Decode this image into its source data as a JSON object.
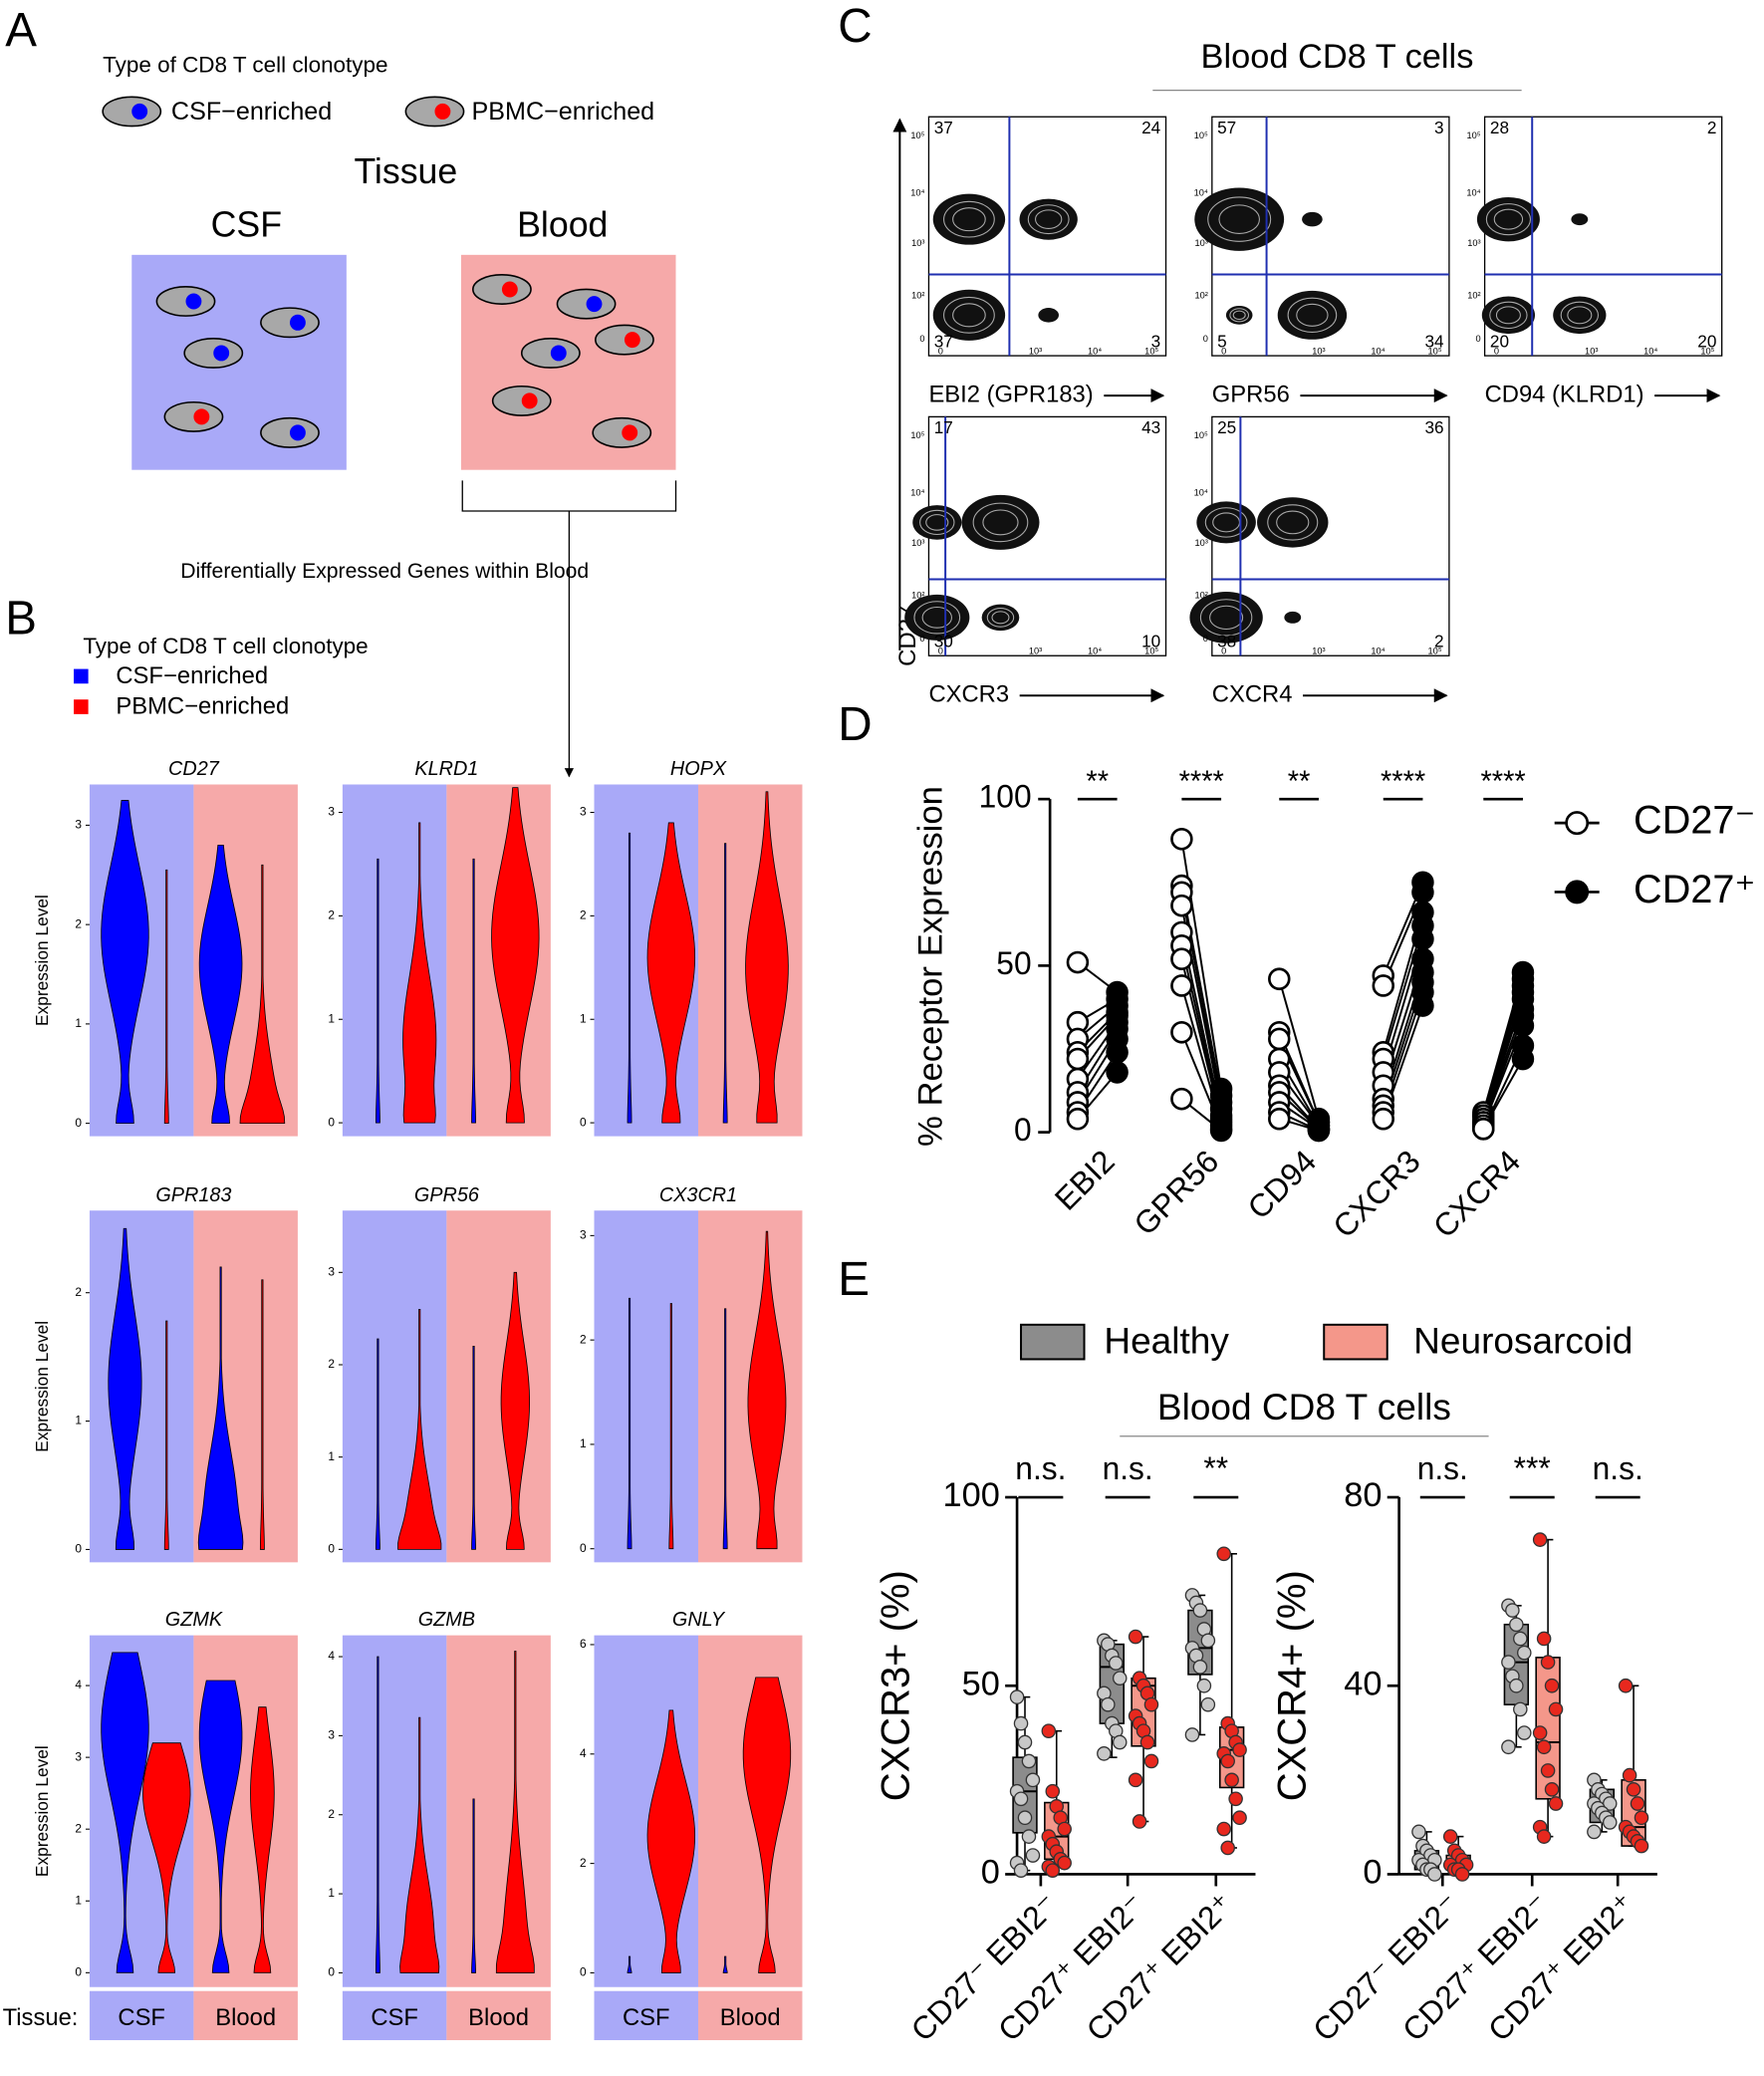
{
  "panel_labels": [
    "A",
    "B",
    "C",
    "D",
    "E"
  ],
  "panel_a": {
    "legend_title": "Type of CD8 T cell clonotype",
    "legend": [
      {
        "name": "CSF−enriched",
        "color": "#0000ff"
      },
      {
        "name": "PBMC−enriched",
        "color": "#ff0000"
      }
    ],
    "heading": "Tissue",
    "tissues": [
      {
        "name": "CSF",
        "color": "#a9a9f8"
      },
      {
        "name": "Blood",
        "color": "#f6a9a9"
      }
    ],
    "caption": "Differentially Expressed Genes within Blood"
  },
  "panel_b": {
    "legend_title": "Type of CD8 T cell clonotype",
    "legend": [
      {
        "name": "CSF−enriched",
        "color": "#0000ff"
      },
      {
        "name": "PBMC−enriched",
        "color": "#ff0000"
      }
    ],
    "y_label": "Expression Level",
    "tissue_label": "Tissue:",
    "tissues": [
      {
        "name": "CSF",
        "color": "#a9a9f8"
      },
      {
        "name": "Blood",
        "color": "#f6a9a9"
      }
    ],
    "plots": [
      {
        "gene": "CD27",
        "ylim": [
          -0.13,
          3.41
        ],
        "yticks": [
          0,
          1,
          2,
          3
        ],
        "violins": [
          {
            "max": 3.25,
            "mode": 1.9,
            "spread": 1
          },
          {
            "max": 2.55,
            "mode": 0,
            "spread": 0.05
          },
          {
            "max": 2.8,
            "mode": 1.6,
            "spread": 0.9
          },
          {
            "max": 2.6,
            "mode": 0.1,
            "spread": 0.6
          }
        ]
      },
      {
        "gene": "KLRD1",
        "ylim": [
          -0.13,
          3.27
        ],
        "yticks": [
          0,
          1,
          2,
          3
        ],
        "violins": [
          {
            "max": 2.55,
            "mode": 0,
            "spread": 0.05
          },
          {
            "max": 2.9,
            "mode": 0.8,
            "spread": 0.7
          },
          {
            "max": 2.55,
            "mode": 0,
            "spread": 0.05
          },
          {
            "max": 3.24,
            "mode": 1.8,
            "spread": 1
          }
        ]
      },
      {
        "gene": "HOPX",
        "ylim": [
          -0.13,
          3.27
        ],
        "yticks": [
          0,
          1,
          2,
          3
        ],
        "violins": [
          {
            "max": 2.8,
            "mode": 0,
            "spread": 0.05
          },
          {
            "max": 2.9,
            "mode": 1.6,
            "spread": 1
          },
          {
            "max": 2.7,
            "mode": 0,
            "spread": 0.05
          },
          {
            "max": 3.2,
            "mode": 1.5,
            "spread": 0.9
          }
        ]
      },
      {
        "gene": "GPR183",
        "ylim": [
          -0.1,
          2.64
        ],
        "yticks": [
          0,
          1,
          2
        ],
        "violins": [
          {
            "max": 2.5,
            "mode": 1.3,
            "spread": 0.7
          },
          {
            "max": 1.78,
            "mode": 0,
            "spread": 0.05
          },
          {
            "max": 2.2,
            "mode": 0.3,
            "spread": 0.7
          },
          {
            "max": 2.1,
            "mode": 0,
            "spread": 0.05
          }
        ]
      },
      {
        "gene": "GPR56",
        "ylim": [
          -0.14,
          3.67
        ],
        "yticks": [
          0,
          1,
          2,
          3
        ],
        "violins": [
          {
            "max": 2.28,
            "mode": 0,
            "spread": 0.05
          },
          {
            "max": 2.6,
            "mode": 0.2,
            "spread": 0.6
          },
          {
            "max": 2.2,
            "mode": 0,
            "spread": 0.05
          },
          {
            "max": 3.0,
            "mode": 1.6,
            "spread": 0.6
          }
        ]
      },
      {
        "gene": "CX3CR1",
        "ylim": [
          -0.13,
          3.24
        ],
        "yticks": [
          0,
          1,
          2,
          3
        ],
        "violins": [
          {
            "max": 2.4,
            "mode": 0,
            "spread": 0.05
          },
          {
            "max": 2.35,
            "mode": 0,
            "spread": 0.05
          },
          {
            "max": 2.3,
            "mode": 0,
            "spread": 0.05
          },
          {
            "max": 3.04,
            "mode": 1.4,
            "spread": 0.8
          }
        ]
      },
      {
        "gene": "GZMK",
        "ylim": [
          -0.2,
          4.7
        ],
        "yticks": [
          0,
          1,
          2,
          3,
          4
        ],
        "violins": [
          {
            "max": 4.46,
            "mode": 3.4,
            "spread": 1
          },
          {
            "max": 3.2,
            "mode": 2.5,
            "spread": 1
          },
          {
            "max": 4.07,
            "mode": 3.3,
            "spread": 0.9
          },
          {
            "max": 3.7,
            "mode": 2.5,
            "spread": 0.5
          }
        ]
      },
      {
        "gene": "GZMB",
        "ylim": [
          -0.18,
          4.27
        ],
        "yticks": [
          0,
          1,
          2,
          3,
          4
        ],
        "violins": [
          {
            "max": 4.0,
            "mode": 0,
            "spread": 0.05
          },
          {
            "max": 3.23,
            "mode": 0.5,
            "spread": 0.6
          },
          {
            "max": 2.2,
            "mode": 0,
            "spread": 0.05
          },
          {
            "max": 4.07,
            "mode": 0.4,
            "spread": 0.5
          }
        ]
      },
      {
        "gene": "GNLY",
        "ylim": [
          -0.26,
          6.17
        ],
        "yticks": [
          0,
          2,
          4,
          6
        ],
        "violins": [
          {
            "max": 0.3,
            "mode": 0,
            "spread": 0.05
          },
          {
            "max": 4.8,
            "mode": 2.5,
            "spread": 1
          },
          {
            "max": 0.3,
            "mode": 0,
            "spread": 0.05
          },
          {
            "max": 5.4,
            "mode": 4,
            "spread": 1
          }
        ]
      }
    ]
  },
  "panel_c": {
    "title": "Blood CD8 T cells",
    "y_label": "CD27",
    "xticks": [
      "0",
      "10³",
      "10⁴",
      "10⁵"
    ],
    "yticks": [
      "0",
      "10²",
      "10³",
      "10⁴",
      "10⁵"
    ],
    "plots": [
      {
        "x_label": "EBI2 (GPR183)",
        "quadrants": [
          37,
          24,
          37,
          3
        ]
      },
      {
        "x_label": "GPR56",
        "quadrants": [
          57,
          3,
          5,
          34
        ]
      },
      {
        "x_label": "CD94 (KLRD1)",
        "quadrants": [
          28,
          2,
          20,
          20
        ]
      },
      {
        "x_label": "CXCR3",
        "quadrants": [
          17,
          43,
          30,
          10
        ]
      },
      {
        "x_label": "CXCR4",
        "quadrants": [
          25,
          36,
          38,
          2
        ]
      }
    ]
  },
  "chart_data": [
    {
      "type": "paired-dot",
      "y_label": "% Receptor Expression",
      "categories": [
        "EBI2",
        "GPR56",
        "CD94",
        "CXCR3",
        "CXCR4"
      ],
      "significance": [
        "**",
        "****",
        "**",
        "****",
        "****"
      ],
      "ylim": [
        0,
        100
      ],
      "yticks": [
        0,
        50,
        100
      ],
      "legend": "right",
      "series": [
        {
          "name": "CD27⁻",
          "color": "#ffffff",
          "values": [
            [
              51,
              33,
              28,
              24,
              22,
              16,
              12,
              9,
              6,
              4
            ],
            [
              88,
              74,
              72,
              68,
              60,
              56,
              52,
              44,
              30,
              10
            ],
            [
              46,
              30,
              28,
              22,
              18,
              14,
              12,
              9,
              6,
              4
            ],
            [
              47,
              44,
              24,
              22,
              18,
              14,
              10,
              8,
              6,
              4
            ],
            [
              6,
              5,
              5,
              4,
              3,
              3,
              2,
              2,
              1,
              1
            ]
          ]
        },
        {
          "name": "CD27⁺",
          "color": "#000000",
          "values": [
            [
              42,
              40,
              38,
              36,
              35,
              33,
              31,
              28,
              24,
              18
            ],
            [
              13,
              11,
              9,
              7,
              5,
              4,
              3,
              2,
              1,
              0.5
            ],
            [
              4,
              3,
              3,
              2,
              2,
              1,
              1,
              1,
              0.5,
              0.5
            ],
            [
              75,
              72,
              66,
              62,
              58,
              52,
              48,
              45,
              42,
              38
            ],
            [
              48,
              46,
              44,
              42,
              40,
              37,
              35,
              32,
              26,
              22
            ]
          ]
        }
      ]
    },
    {
      "type": "box",
      "title": "Blood CD8 T cells",
      "y_label": "CXCR3+ (%)",
      "categories": [
        "CD27⁻ EBI2⁻",
        "CD27⁺ EBI2⁻",
        "CD27⁺ EBI2⁺"
      ],
      "significance": [
        "n.s.",
        "n.s.",
        "**"
      ],
      "ylim": [
        0,
        100
      ],
      "yticks": [
        0,
        50,
        100
      ],
      "series": [
        {
          "name": "Healthy",
          "color": "#8c8c8c",
          "point_color": "#c8c8c8",
          "values": [
            [
              1,
              11,
              22,
              31,
              47
            ],
            [
              31,
              40,
              55,
              61,
              62
            ],
            [
              37,
              53,
              60,
              70,
              74
            ]
          ],
          "points": [
            [
              47,
              40,
              35,
              30,
              25,
              22,
              20,
              15,
              10,
              5,
              3,
              1
            ],
            [
              62,
              61,
              58,
              56,
              52,
              48,
              45,
              40,
              38,
              35,
              32
            ],
            [
              74,
              72,
              70,
              65,
              62,
              60,
              58,
              55,
              50,
              45,
              37
            ]
          ]
        },
        {
          "name": "Neurosarcoid",
          "color": "#f4978a",
          "point_color": "#e8281e",
          "values": [
            [
              0,
              4,
              10,
              19,
              38
            ],
            [
              14,
              34,
              50,
              52,
              63
            ],
            [
              7,
              23,
              33,
              39,
              85
            ]
          ],
          "points": [
            [
              38,
              22,
              18,
              15,
              12,
              10,
              8,
              6,
              4,
              3,
              2,
              1
            ],
            [
              63,
              52,
              50,
              48,
              45,
              42,
              40,
              38,
              35,
              30,
              25,
              14
            ],
            [
              85,
              40,
              38,
              35,
              33,
              32,
              30,
              25,
              20,
              15,
              12,
              7
            ]
          ]
        }
      ]
    },
    {
      "type": "box",
      "y_label": "CXCR4+ (%)",
      "categories": [
        "CD27⁻ EBI2⁻",
        "CD27⁺ EBI2⁻",
        "CD27⁺ EBI2⁺"
      ],
      "significance": [
        "n.s.",
        "***",
        "n.s."
      ],
      "ylim": [
        0,
        80
      ],
      "yticks": [
        0,
        40,
        80
      ],
      "series": [
        {
          "color": "#8c8c8c",
          "point_color": "#c8c8c8",
          "values": [
            [
              0,
              1,
              3,
              5,
              9
            ],
            [
              27,
              36,
              45,
              53,
              57
            ],
            [
              9,
              11,
              15,
              18,
              20
            ]
          ],
          "points": [
            [
              9,
              6,
              5,
              4,
              3,
              3,
              2,
              1,
              1,
              0
            ],
            [
              57,
              56,
              53,
              50,
              47,
              45,
              42,
              40,
              35,
              30,
              27
            ],
            [
              20,
              18,
              17,
              16,
              15,
              15,
              14,
              13,
              12,
              11,
              9
            ]
          ]
        },
        {
          "color": "#f4978a",
          "point_color": "#e8281e",
          "values": [
            [
              0,
              1,
              2,
              4,
              8
            ],
            [
              8,
              16,
              28,
              46,
              71
            ],
            [
              6,
              6,
              10,
              20,
              40
            ]
          ],
          "points": [
            [
              8,
              5,
              4,
              3,
              2,
              2,
              1,
              1,
              0
            ],
            [
              71,
              50,
              45,
              40,
              35,
              30,
              27,
              22,
              18,
              15,
              10,
              8
            ],
            [
              40,
              21,
              18,
              15,
              12,
              10,
              9,
              8,
              7,
              6
            ]
          ]
        }
      ]
    }
  ]
}
